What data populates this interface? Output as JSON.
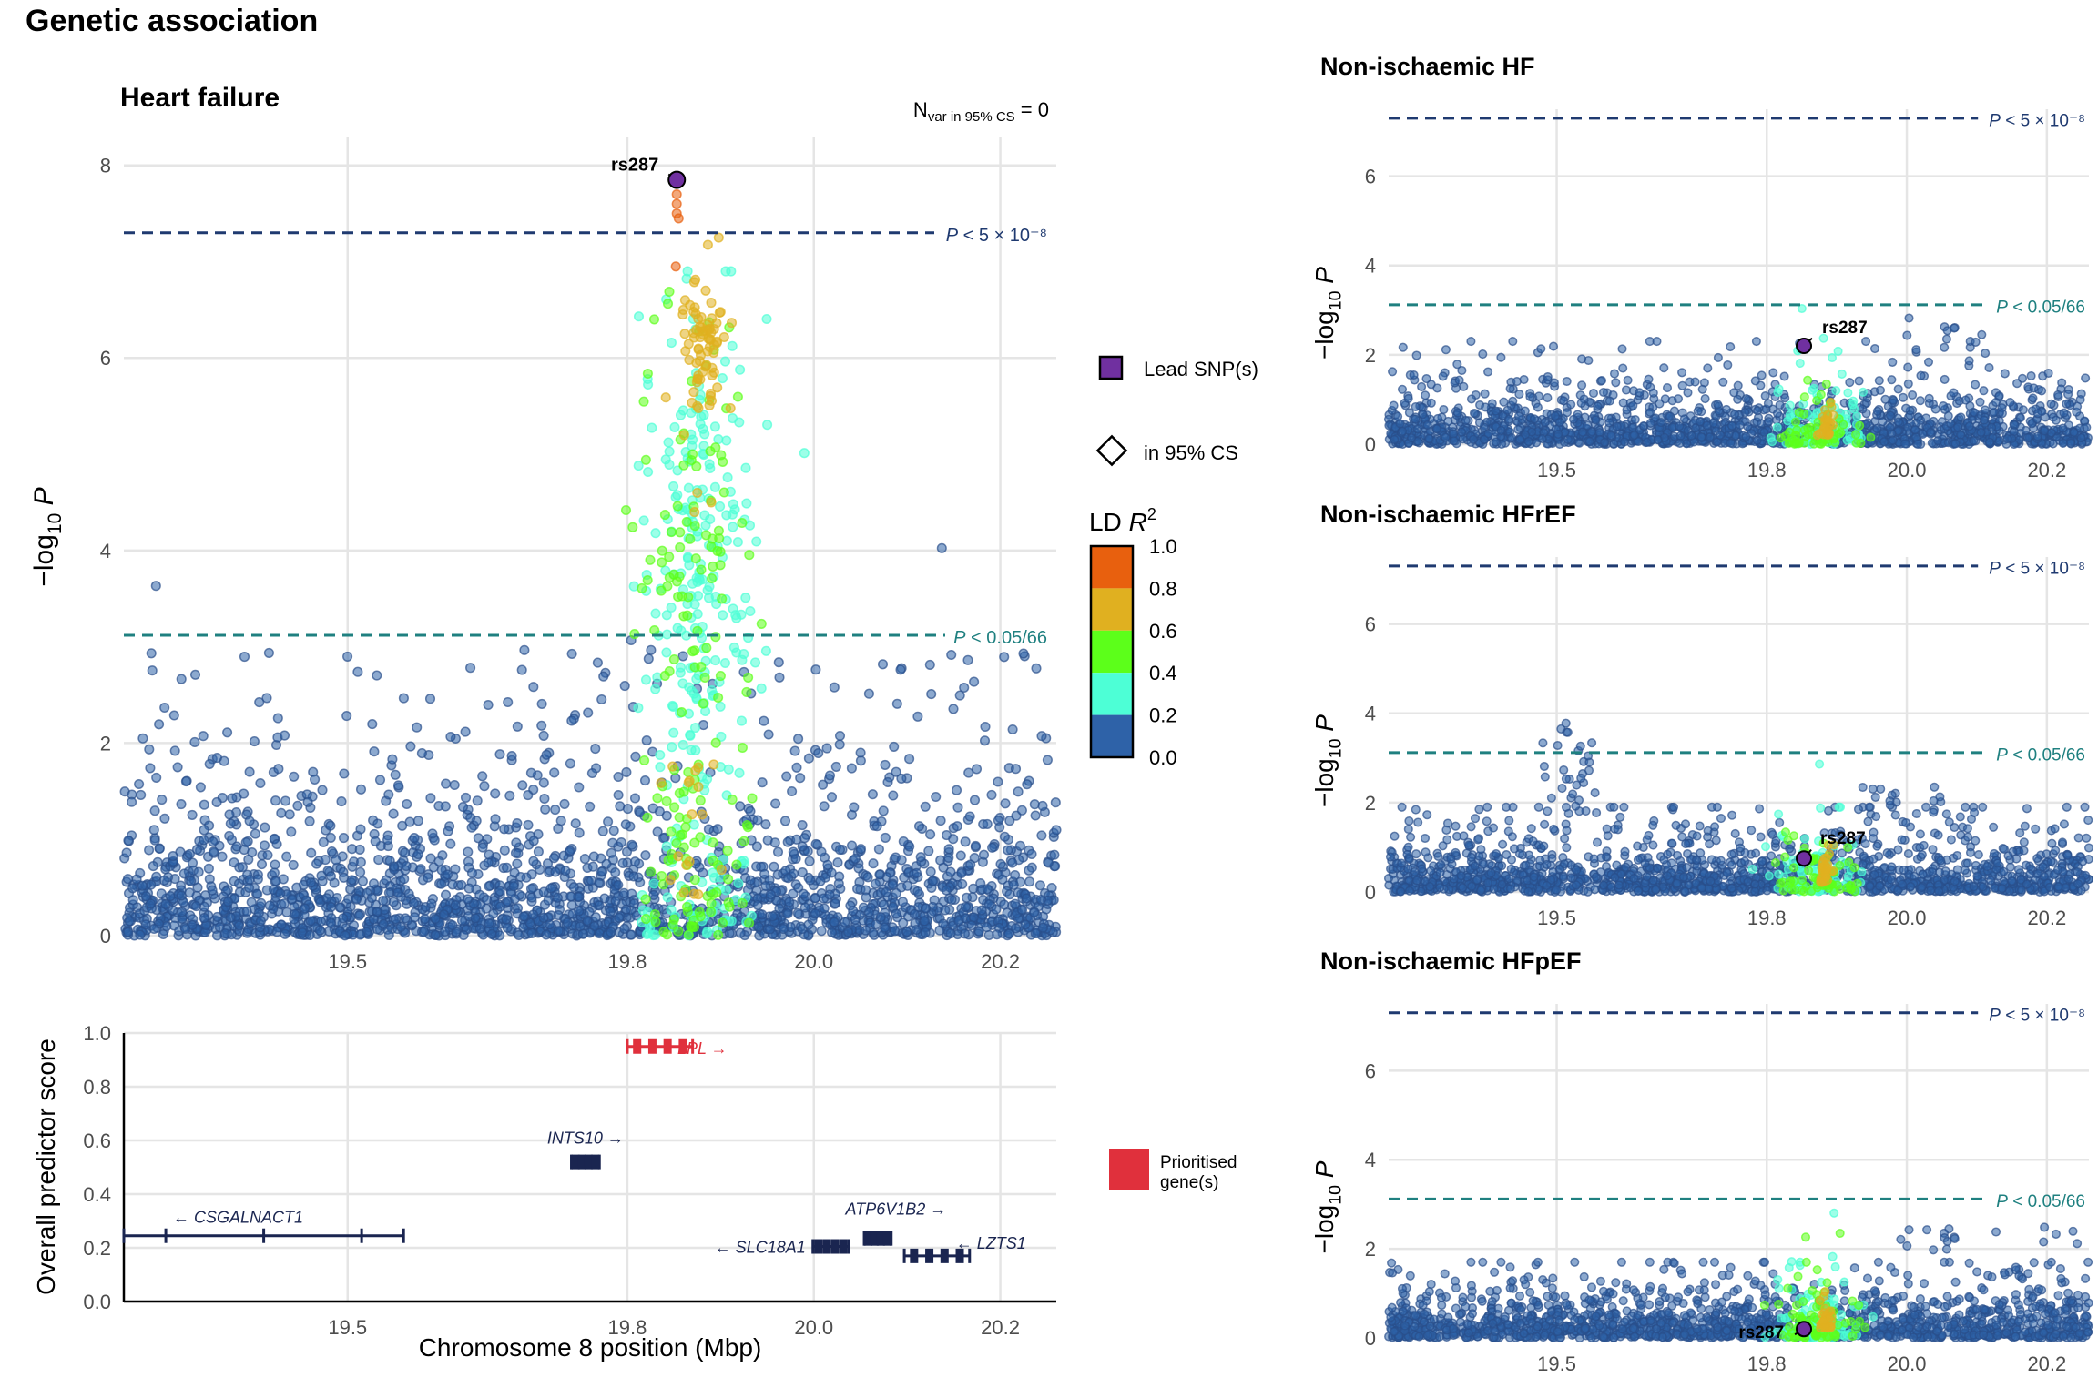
{
  "title": "Genetic association",
  "colors": {
    "lead": "#7030A0",
    "ld_bins": [
      "#2E62A8",
      "#4DFFD6",
      "#5CFF1A",
      "#E0B020",
      "#E8600E"
    ],
    "gws_line": "#1F3A70",
    "bonf_line": "#1F8080",
    "gene_default": "#1A2550",
    "gene_prioritised": "#E0303C",
    "grid": "#E5E5E5"
  },
  "legend": {
    "lead_label": "Lead SNP(s)",
    "cs_label": "in 95% CS",
    "ld_title": "LD ",
    "ld_title_italic": "R",
    "ld_title_sup": "2",
    "ld_ticks": [
      "1.0",
      "0.8",
      "0.6",
      "0.4",
      "0.2",
      "0.0"
    ],
    "prioritised_label_1": "Prioritised",
    "prioritised_label_2": "gene(s)"
  },
  "chart_data": [
    {
      "type": "scatter",
      "panel": "main",
      "title": "Heart failure",
      "annotation_main": "N",
      "annotation_sub": "var in 95% CS",
      "annotation_value": " = 0",
      "ylabel_prefix": "−log",
      "ylabel_sub": "10",
      "ylabel_var": "P",
      "xlim": [
        19.26,
        20.26
      ],
      "ylim": [
        0,
        8.3
      ],
      "xticks": [
        "19.5",
        "19.8",
        "20.0",
        "20.2"
      ],
      "yticks": [
        "0",
        "2",
        "4",
        "6",
        "8"
      ],
      "threshold_gws": {
        "value": 7.3,
        "label": "P < 5 × 10⁻⁸"
      },
      "threshold_bonf": {
        "value": 3.12,
        "label": "P < 0.05/66"
      },
      "lead_snp": {
        "label": "rs287",
        "x": 19.853,
        "y": 7.85
      },
      "peak_points": [
        {
          "x": 19.853,
          "y": 7.7,
          "r2": 0.95
        },
        {
          "x": 19.853,
          "y": 7.6,
          "r2": 0.95
        },
        {
          "x": 19.853,
          "y": 7.5,
          "r2": 0.95
        },
        {
          "x": 19.855,
          "y": 7.45,
          "r2": 0.95
        },
        {
          "x": 19.852,
          "y": 6.95,
          "r2": 0.9
        },
        {
          "x": 19.862,
          "y": 6.6,
          "r2": 0.7
        },
        {
          "x": 19.86,
          "y": 6.5,
          "r2": 0.65
        },
        {
          "x": 19.887,
          "y": 6.2,
          "r2": 0.7
        },
        {
          "x": 19.893,
          "y": 6.3,
          "r2": 0.7
        },
        {
          "x": 19.898,
          "y": 7.25,
          "r2": 0.65
        },
        {
          "x": 19.884,
          "y": 6.7,
          "r2": 0.65
        },
        {
          "x": 19.87,
          "y": 5.0,
          "r2": 0.5
        },
        {
          "x": 19.875,
          "y": 4.6,
          "r2": 0.7
        },
        {
          "x": 19.872,
          "y": 4.4,
          "r2": 0.7
        },
        {
          "x": 19.89,
          "y": 4.5,
          "r2": 0.65
        },
        {
          "x": 19.861,
          "y": 5.2,
          "r2": 0.65
        }
      ]
    },
    {
      "type": "gene_track",
      "panel": "genes",
      "ylabel": "Overall predictor score",
      "xlabel": "Chromosome 8 position (Mbp)",
      "xlim": [
        19.26,
        20.26
      ],
      "ylim": [
        0,
        1.0
      ],
      "xticks": [
        "19.5",
        "19.8",
        "20.0",
        "20.2"
      ],
      "yticks": [
        "0.0",
        "0.2",
        "0.4",
        "0.6",
        "0.8",
        "1.0"
      ],
      "genes": [
        {
          "name": "LPL",
          "direction": "→",
          "start": 19.8,
          "end": 19.87,
          "score": 0.95,
          "prioritised": true
        },
        {
          "name": "INTS10",
          "direction": "→",
          "start": 19.74,
          "end": 19.77,
          "score": 0.52,
          "prioritised": false
        },
        {
          "name": "CSGALNACT1",
          "direction": "←",
          "start": 19.26,
          "end": 19.56,
          "score": 0.245,
          "prioritised": false
        },
        {
          "name": "SLC18A1",
          "direction": "←",
          "start": 19.999,
          "end": 20.037,
          "score": 0.205,
          "prioritised": false
        },
        {
          "name": "ATP6V1B2",
          "direction": "→",
          "start": 20.054,
          "end": 20.083,
          "score": 0.235,
          "prioritised": false
        },
        {
          "name": "LZTS1",
          "direction": "←",
          "start": 20.097,
          "end": 20.167,
          "score": 0.17,
          "prioritised": false
        }
      ]
    },
    {
      "type": "scatter",
      "panel": "side1",
      "title": "Non-ischaemic HF",
      "xlim": [
        19.26,
        20.26
      ],
      "ylim": [
        0,
        7.5
      ],
      "xticks": [
        "19.5",
        "19.8",
        "20.0",
        "20.2"
      ],
      "yticks": [
        "0",
        "2",
        "4",
        "6"
      ],
      "threshold_gws": {
        "value": 7.3,
        "label": "P < 5 × 10⁻⁸"
      },
      "threshold_bonf": {
        "value": 3.12,
        "label": "P < 0.05/66"
      },
      "lead_snp": {
        "label": "rs287",
        "x": 19.853,
        "y": 2.2
      }
    },
    {
      "type": "scatter",
      "panel": "side2",
      "title": "Non-ischaemic HFrEF",
      "xlim": [
        19.26,
        20.26
      ],
      "ylim": [
        0,
        7.5
      ],
      "xticks": [
        "19.5",
        "19.8",
        "20.0",
        "20.2"
      ],
      "yticks": [
        "0",
        "2",
        "4",
        "6"
      ],
      "threshold_gws": {
        "value": 7.3,
        "label": "P < 5 × 10⁻⁸"
      },
      "threshold_bonf": {
        "value": 3.12,
        "label": "P < 0.05/66"
      },
      "lead_snp": {
        "label": "rs287",
        "x": 19.853,
        "y": 0.75
      }
    },
    {
      "type": "scatter",
      "panel": "side3",
      "title": "Non-ischaemic HFpEF",
      "xlim": [
        19.26,
        20.26
      ],
      "ylim": [
        0,
        7.5
      ],
      "xticks": [
        "19.5",
        "19.8",
        "20.0",
        "20.2"
      ],
      "yticks": [
        "0",
        "2",
        "4",
        "6"
      ],
      "threshold_gws": {
        "value": 7.3,
        "label": "P < 5 × 10⁻⁸"
      },
      "threshold_bonf": {
        "value": 3.12,
        "label": "P < 0.05/66"
      },
      "lead_snp": {
        "label": "rs287",
        "x": 19.853,
        "y": 0.2
      }
    }
  ]
}
